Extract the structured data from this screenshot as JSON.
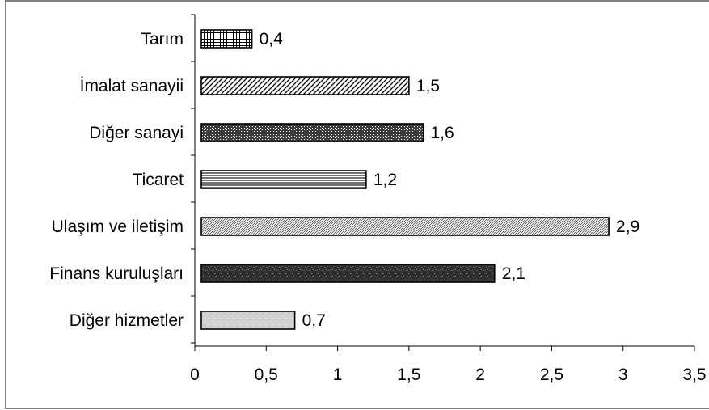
{
  "chart_data": {
    "type": "bar",
    "orientation": "horizontal",
    "title": "",
    "xlabel": "",
    "ylabel": "",
    "categories": [
      "Tarım",
      "İmalat sanayii",
      "Diğer sanayi",
      "Ticaret",
      "Ulaşım ve iletişim",
      "Finans kuruluşları",
      "Diğer hizmetler"
    ],
    "values": [
      0.4,
      1.5,
      1.6,
      1.2,
      2.9,
      2.1,
      0.7
    ],
    "value_labels": [
      "0,4",
      "1,5",
      "1,6",
      "1,2",
      "2,9",
      "2,1",
      "0,7"
    ],
    "xlim": [
      0,
      3.5
    ],
    "x_ticks": [
      0,
      0.5,
      1,
      1.5,
      2,
      2.5,
      3,
      3.5
    ],
    "x_tick_labels": [
      "0",
      "0,5",
      "1",
      "1,5",
      "2",
      "2,5",
      "3",
      "3,5"
    ],
    "grid": false,
    "legend": "none",
    "bar_patterns": [
      "grid",
      "diagonal",
      "dots-dark",
      "horizontal-lines",
      "fine-diagonal",
      "speckle-dark",
      "speckle-light"
    ],
    "colors": {
      "axis": "#000000",
      "bar_border": "#000000",
      "background": "#ffffff",
      "frame": "#000000"
    }
  }
}
